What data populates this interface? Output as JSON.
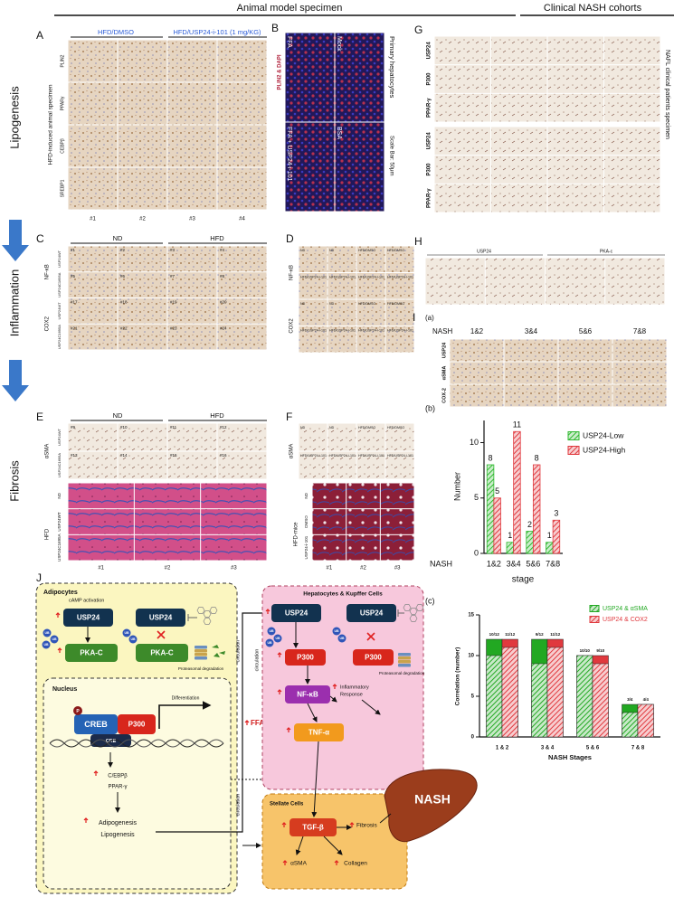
{
  "header": {
    "animal": "Animal model specimen",
    "clinical": "Clinical NASH cohorts"
  },
  "stages": [
    "Lipogenesis",
    "Inflammation",
    "Fibrosis"
  ],
  "panels": {
    "A": {
      "letter": "A",
      "groups": [
        "HFD/DMSO",
        "HFD/USP24-i-101 (1 mg/KG)"
      ],
      "rows": [
        "PLIN2",
        "PPARγ",
        "CEBPβ",
        "SREBP1"
      ],
      "side": "HFD-induced animal specimen",
      "columns": [
        "#1",
        "#2",
        "#3",
        "#4"
      ]
    },
    "B": {
      "letter": "B",
      "stain": "PLIN2 & DAPI",
      "conditions": [
        "FFA",
        "Mock",
        "FFA + USP24-i-101",
        "BSA"
      ],
      "cells": "Primary hepatocytes",
      "scale": "Scale Bar: 50μm"
    },
    "G": {
      "letter": "G",
      "rows": [
        "USP24",
        "P300",
        "PPAR-γ"
      ],
      "side": "NAFL clinical patients specimen"
    },
    "C": {
      "letter": "C",
      "groups": [
        "ND",
        "HFD"
      ],
      "markers": [
        "NF-κB",
        "COX2"
      ],
      "genotypes": [
        "USP24WT",
        "USP24C1695A"
      ],
      "labels": [
        "#1",
        "#2",
        "#3",
        "#4",
        "#5",
        "#6",
        "#7",
        "#8",
        "#17",
        "#18",
        "#19",
        "#20",
        "#21",
        "#22",
        "#23",
        "#24"
      ]
    },
    "D": {
      "letter": "D",
      "markers": [
        "NF-κB",
        "COX2"
      ],
      "labels": [
        "ND",
        "ND",
        "HFD/DMSO",
        "HFD/DMSO",
        "HFD/USP24-i-101",
        "HFD/USP24-i-101",
        "HFD/USP24-i-101",
        "HFD/USP24-i-101"
      ]
    },
    "H": {
      "letter": "H",
      "markers": [
        "USP24",
        "PKA-c"
      ]
    },
    "I": {
      "letter": "I",
      "sub": "(a)",
      "nash": "NASH",
      "stages": [
        "1&2",
        "3&4",
        "5&6",
        "7&8"
      ],
      "rows": [
        "USP24",
        "αSMA",
        "COX-2"
      ]
    },
    "E": {
      "letter": "E",
      "groups": [
        "ND",
        "HFD"
      ],
      "stain": "αSMA",
      "genotypes": [
        "USP24WT",
        "USP24C1695A"
      ],
      "labels": [
        "#9",
        "#10",
        "#11",
        "#12",
        "#13",
        "#14",
        "#15",
        "#16"
      ],
      "rows": [
        "ND",
        "USP24WT",
        "USP24C1695A"
      ],
      "group": "HFD",
      "columns": [
        "#1",
        "#2",
        "#3"
      ]
    },
    "F": {
      "letter": "F",
      "stain": "αSMA",
      "labels": [
        "ND",
        "ND",
        "HFD/DMSO",
        "HFD/DMSO",
        "HFD/USP24-i-101",
        "HFD/USP24-i-101",
        "HFD/USP24-i-101",
        "HFD/USP24-i-101"
      ],
      "rows": [
        "ND",
        "DMSO",
        "USP24-i-101"
      ],
      "group": "HFD-mice",
      "columns": [
        "#1",
        "#2",
        "#3"
      ]
    }
  },
  "chart_data": [
    {
      "type": "bar",
      "label": "(b)",
      "ylabel": "Number",
      "xlabel": "stage",
      "xprefix": "NASH",
      "categories": [
        "1&2",
        "3&4",
        "5&6",
        "7&8"
      ],
      "series": [
        {
          "name": "USP24-Low",
          "color": "#2fb82f",
          "hatch": true,
          "values": [
            8,
            1,
            2,
            1
          ]
        },
        {
          "name": "USP24-High",
          "color": "#e0393e",
          "hatch": true,
          "values": [
            5,
            11,
            8,
            3
          ]
        }
      ],
      "ylim": [
        0,
        12
      ],
      "yticks": [
        0,
        5,
        10
      ],
      "legend": "right"
    },
    {
      "type": "bar",
      "label": "(c)",
      "ylabel": "Correlation (number)",
      "xlabel": "NASH Stages",
      "categories": [
        "1 & 2",
        "3 & 4",
        "5 & 6",
        "7 & 8"
      ],
      "series": [
        {
          "name": "USP24 & αSMA",
          "color": "#22a822",
          "hatch": true,
          "values": [
            10,
            9,
            10,
            3
          ],
          "totals": [
            12,
            12,
            10,
            4
          ],
          "value_labels": [
            "10/12",
            "9/12",
            "10/10",
            "3/4"
          ]
        },
        {
          "name": "USP24 & COX2",
          "color": "#e0393e",
          "hatch": true,
          "values": [
            11,
            11,
            9,
            4
          ],
          "totals": [
            12,
            12,
            10,
            4
          ],
          "value_labels": [
            "11/12",
            "11/12",
            "9/10",
            "4/4"
          ]
        }
      ],
      "ylim": [
        0,
        15
      ],
      "yticks": [
        0,
        5,
        10,
        15
      ],
      "legend": "top-right",
      "legend_colored_text": true
    }
  ],
  "diagram": {
    "letter": "J",
    "adipocytes": "Adipocytes",
    "camp": "cAMP activation",
    "usp24": "USP24",
    "pkac": "PKA-C",
    "proteasomal": "Proteasomal degradation",
    "ub": "UB",
    "nucleus": "Nucleus",
    "p": "P",
    "creb": "CREB",
    "p300": "P300",
    "cre": "CRE",
    "differentiation": "Differentiation",
    "cebpb": "C/EBPβ",
    "pparg": "PPAR-γ",
    "adipogenesis": "Adipogenesis",
    "lipogenesis": "Lipogenesis",
    "ffa": "FFA",
    "circulation": "circulation",
    "hepatocytes": "Hepatocytes & Kupffer Cells",
    "nfkb": "NF-κB",
    "inflammatory": [
      "Inflammatory",
      "Response"
    ],
    "tnfa": "TNF-α",
    "stellate": "Stellate Cells",
    "tgfb": "TGF-β",
    "fibrosis": "Fibrosis",
    "asma": "αSMA",
    "collagen": "Collagen",
    "nash": "NASH"
  }
}
